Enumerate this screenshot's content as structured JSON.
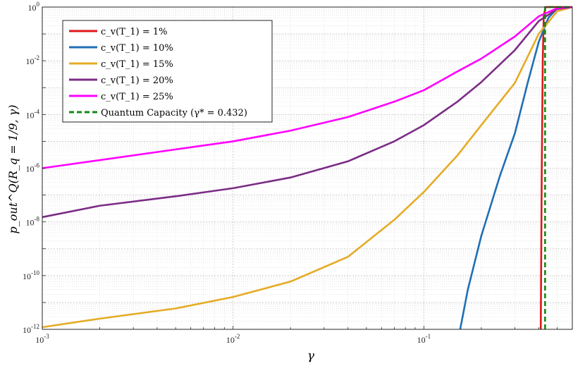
{
  "chart_data": {
    "type": "line",
    "xscale": "log",
    "yscale": "log",
    "xlim": [
      0.001,
      0.6
    ],
    "ylim": [
      1e-12,
      1
    ],
    "xlabel": "γ",
    "ylabel": "p_out^Q(R_q = 1/9, γ)",
    "xticks": [
      {
        "value": 0.001,
        "base": "10",
        "exp": "-3"
      },
      {
        "value": 0.01,
        "base": "10",
        "exp": "-2"
      },
      {
        "value": 0.1,
        "base": "10",
        "exp": "-1"
      }
    ],
    "yticks": [
      {
        "value": 1,
        "base": "10",
        "exp": "0"
      },
      {
        "value": 0.01,
        "base": "10",
        "exp": "-2"
      },
      {
        "value": 0.0001,
        "base": "10",
        "exp": "-4"
      },
      {
        "value": 1e-06,
        "base": "10",
        "exp": "-6"
      },
      {
        "value": 1e-08,
        "base": "10",
        "exp": "-8"
      },
      {
        "value": 1e-10,
        "base": "10",
        "exp": "-10"
      },
      {
        "value": 1e-12,
        "base": "10",
        "exp": "-12"
      }
    ],
    "grid": true,
    "legend_position": "top-left",
    "series": [
      {
        "name": "c_v(T_1) = 1%",
        "color": "#e0161b",
        "dash": "solid",
        "x": [
          0.41,
          0.415,
          0.42,
          0.425,
          0.435,
          0.6
        ],
        "y": [
          1e-12,
          1e-06,
          0.01,
          0.5,
          1,
          1
        ]
      },
      {
        "name": "c_v(T_1) = 10%",
        "color": "#1f6fb5",
        "dash": "solid",
        "x": [
          0.155,
          0.17,
          0.2,
          0.25,
          0.3,
          0.35,
          0.4,
          0.45,
          0.5,
          0.6
        ],
        "y": [
          1e-12,
          3e-11,
          3e-09,
          5e-07,
          2e-05,
          0.0015,
          0.05,
          0.4,
          0.9,
          1
        ]
      },
      {
        "name": "c_v(T_1) = 15%",
        "color": "#e5ab24",
        "dash": "solid",
        "x": [
          0.001,
          0.002,
          0.005,
          0.01,
          0.02,
          0.04,
          0.07,
          0.1,
          0.15,
          0.2,
          0.3,
          0.4,
          0.5,
          0.6
        ],
        "y": [
          1.2e-12,
          2.5e-12,
          6e-12,
          1.6e-11,
          6e-11,
          5e-10,
          1.2e-08,
          1.3e-07,
          3e-06,
          4e-05,
          0.0015,
          0.1,
          0.7,
          1
        ]
      },
      {
        "name": "c_v(T_1) = 20%",
        "color": "#7b2c86",
        "dash": "solid",
        "x": [
          0.001,
          0.002,
          0.005,
          0.01,
          0.02,
          0.04,
          0.07,
          0.1,
          0.15,
          0.2,
          0.3,
          0.4,
          0.5,
          0.6
        ],
        "y": [
          1.5e-08,
          4e-08,
          9e-08,
          1.8e-07,
          4.5e-07,
          1.8e-06,
          1e-05,
          4e-05,
          0.0003,
          0.0016,
          0.025,
          0.3,
          0.85,
          1
        ]
      },
      {
        "name": "c_v(T_1) = 25%",
        "color": "#ff00ff",
        "dash": "solid",
        "x": [
          0.001,
          0.002,
          0.005,
          0.01,
          0.02,
          0.04,
          0.07,
          0.1,
          0.15,
          0.2,
          0.3,
          0.4,
          0.5,
          0.6
        ],
        "y": [
          1e-06,
          2e-06,
          5e-06,
          1e-05,
          2.5e-05,
          8e-05,
          0.0003,
          0.0008,
          0.004,
          0.012,
          0.08,
          0.45,
          0.9,
          1
        ]
      },
      {
        "name": "Quantum Capacity (γ* = 0.432)",
        "color": "#138a13",
        "dash": "dashed",
        "x": [
          0.432,
          0.432,
          0.6
        ],
        "y": [
          1e-12,
          1,
          1
        ]
      }
    ]
  },
  "legend": {
    "entries": [
      {
        "label": "c_v(T_1) = 1%",
        "color": "#e0161b",
        "dash": "solid"
      },
      {
        "label": "c_v(T_1) = 10%",
        "color": "#1f6fb5",
        "dash": "solid"
      },
      {
        "label": "c_v(T_1) = 15%",
        "color": "#e5ab24",
        "dash": "solid"
      },
      {
        "label": "c_v(T_1) = 20%",
        "color": "#7b2c86",
        "dash": "solid"
      },
      {
        "label": "c_v(T_1) = 25%",
        "color": "#ff00ff",
        "dash": "solid"
      },
      {
        "label": "Quantum Capacity (γ* = 0.432)",
        "color": "#138a13",
        "dash": "dashed"
      }
    ]
  }
}
